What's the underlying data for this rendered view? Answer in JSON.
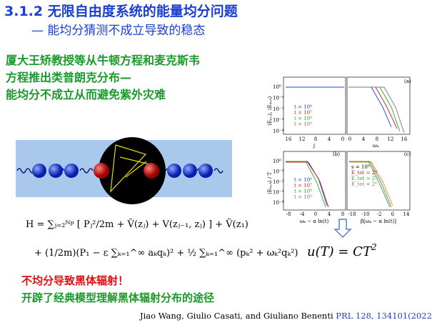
{
  "header": {
    "title": "3.1.2 无限自由度系统的能量均分问题",
    "subtitle": "— 能均分猜测不成立导致的稳态"
  },
  "intro": [
    "厦大王矫教授等从牛顿方程和麦克斯韦",
    "方程推出类普朗克分布—",
    "能均分不成立从而避免紫外灾难"
  ],
  "formula": {
    "line1": "H = ∑ⱼ₌₂ᴺᵖ [ Pⱼ²/2m + Ṽ(zⱼ) + V(zⱼ₋₁, zⱼ) ] + Ṽ(z₁)",
    "line2": "+ (1/2m)(P₁ − ε ∑ₖ₌₁^∞ aₖqₖ)² + ½ ∑ₖ₌₁^∞ (pₖ² + ωₖ²qₖ²)"
  },
  "result": {
    "text": "u(T) = CT",
    "power": "2"
  },
  "conclusions": [
    "不均分导致黑体辐射！",
    "开辟了经典模型理解黑体辐射分布的途径"
  ],
  "citation": {
    "authors": "Jiao Wang, Giulio Casati, and Giuliano Benenti",
    "ref": "PRL 128, 134101(2022)"
  },
  "figure": {
    "panel_labels": [
      "(a)",
      "(b)",
      "(c)"
    ],
    "ylabels": [
      "⟨Eₚ,ⱼ⟩, ⟨Eₘ,ₖ⟩",
      "⟨Eₘ,ₖ⟩ / T"
    ],
    "yticks": [
      "10⁰",
      "10⁻¹",
      "10⁻²",
      "10⁻³",
      "10⁻⁴"
    ],
    "xlabels": [
      "j",
      "ωₖ",
      "ωₖ − α ln(t)",
      "β[ωₖ − α ln(t)]"
    ],
    "xticks_j": [
      "16",
      "12",
      "8",
      "4",
      "0"
    ],
    "xticks_w": [
      "0",
      "4",
      "8",
      "12",
      "16"
    ],
    "xticks_b": [
      "-8",
      "-4",
      "0",
      "4",
      "8"
    ],
    "xticks_c": [
      "-18",
      "-10",
      "-2",
      "6",
      "14"
    ],
    "legend_t": [
      "t = 10⁶",
      "t = 10⁷",
      "t = 10⁸",
      "t = 10⁹"
    ],
    "legend_c": [
      "s = 10⁶",
      "E_tot = 2⁴",
      "E_tot = 2⁵",
      "E_tot = 2⁶"
    ]
  }
}
